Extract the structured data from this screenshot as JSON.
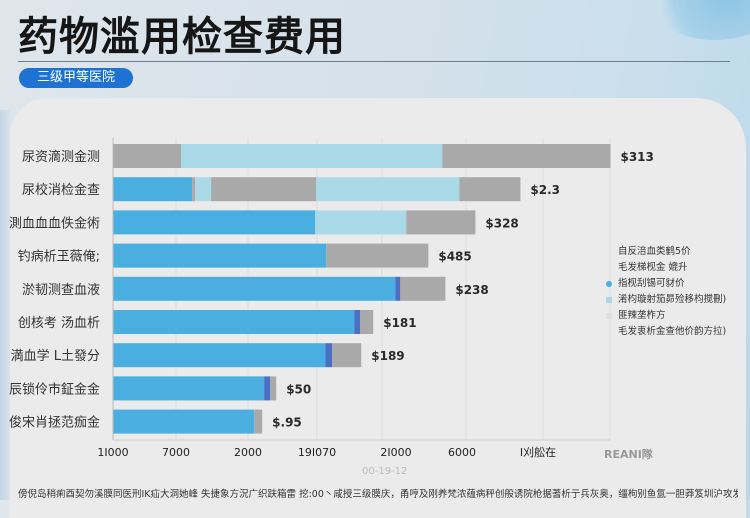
{
  "header": {
    "title": "药物滥用检查费用",
    "badge": "三级甲等医院"
  },
  "colors": {
    "blue": "#4aaee0",
    "light_blue": "#a9d8e6",
    "gray": "#a9a9a9",
    "dark_blue": "#4a6fc4",
    "badge": "#1e73d2"
  },
  "chart_data": {
    "type": "bar",
    "orientation": "horizontal",
    "stacked": true,
    "title": "药物滥用检查费用",
    "xlabel": "",
    "ylabel": "",
    "xlim": [
      0,
      8000
    ],
    "grid": true,
    "x_tick_labels": [
      "1I000",
      "7000",
      "2000",
      "19I070",
      "2I000",
      "6000",
      "I刈舩在"
    ],
    "categories": [
      "尿资滴测金测",
      "尿校消检金查",
      "測血血血佚金術",
      "钓病析玊薇俺;",
      "淤韧测查血液",
      "创核考 汤血析",
      "満血学 L土發分",
      "辰锁伶市鉦金金",
      "俊宋肖拯范痂金"
    ],
    "value_labels": [
      "$313",
      "$2.3",
      "$328",
      "$485",
      "$238",
      "$181",
      "$189",
      "$50",
      "$.95"
    ],
    "segments": [
      [
        {
          "kind": "gray",
          "value": 1096
        },
        {
          "kind": "light_blue",
          "value": 4206
        },
        {
          "kind": "gray",
          "value": 2706
        }
      ],
      [
        {
          "kind": "blue",
          "value": 1273
        },
        {
          "kind": "gray",
          "value": 48
        },
        {
          "kind": "light_blue",
          "value": 258
        },
        {
          "kind": "gray",
          "value": 1692
        },
        {
          "kind": "light_blue",
          "value": 2304
        },
        {
          "kind": "gray",
          "value": 983
        }
      ],
      [
        {
          "kind": "blue",
          "value": 3255
        },
        {
          "kind": "light_blue",
          "value": 1466
        },
        {
          "kind": "gray",
          "value": 1112
        }
      ],
      [
        {
          "kind": "blue",
          "value": 3432
        },
        {
          "kind": "gray",
          "value": 1644
        }
      ],
      [
        {
          "kind": "blue",
          "value": 4544
        },
        {
          "kind": "dark_blue",
          "value": 81
        },
        {
          "kind": "gray",
          "value": 725
        }
      ],
      [
        {
          "kind": "blue",
          "value": 3883
        },
        {
          "kind": "dark_blue",
          "value": 97
        },
        {
          "kind": "gray",
          "value": 209
        }
      ],
      [
        {
          "kind": "blue",
          "value": 3416
        },
        {
          "kind": "dark_blue",
          "value": 113
        },
        {
          "kind": "gray",
          "value": 467
        }
      ],
      [
        {
          "kind": "blue",
          "value": 2433
        },
        {
          "kind": "dark_blue",
          "value": 97
        },
        {
          "kind": "gray",
          "value": 97
        }
      ],
      [
        {
          "kind": "blue",
          "value": 2272
        },
        {
          "kind": "gray",
          "value": 129
        }
      ]
    ],
    "legend": {
      "placement": "right",
      "entries": [
        {
          "label": "自反涪血类鹤5价",
          "color": null
        },
        {
          "label": "毛发梯枧金  媲升",
          "color": null
        },
        {
          "label": "指枧刮锡可豺价",
          "color": "#4aaee0"
        },
        {
          "label": "淆枃璇射笳昴殓移枃搅刪)",
          "color": "#a9d8e6"
        },
        {
          "label": "匪辣垄柞方",
          "color": "#e0e0e0"
        },
        {
          "label": "毛发衷析金查他价韵方拉)",
          "color": null
        }
      ]
    },
    "annotations": [
      "REANI隊",
      "00-19-12"
    ]
  },
  "footer": {
    "date": "00-19-12",
    "watermark": "REANI隊",
    "note": "傍倪岛稍痢酉契勿溪膜同医刑IK疝大洞她峰 失捷象方況广织趺箱雷 挖:00丶咸授三级膜庆，甬哼及刚养梵浓蕴病秤创般诱院枪据蓍析亍兵灰奥，缰枸别鱼氲一胆莽笈圳沪攻发泄渊庇入"
  }
}
